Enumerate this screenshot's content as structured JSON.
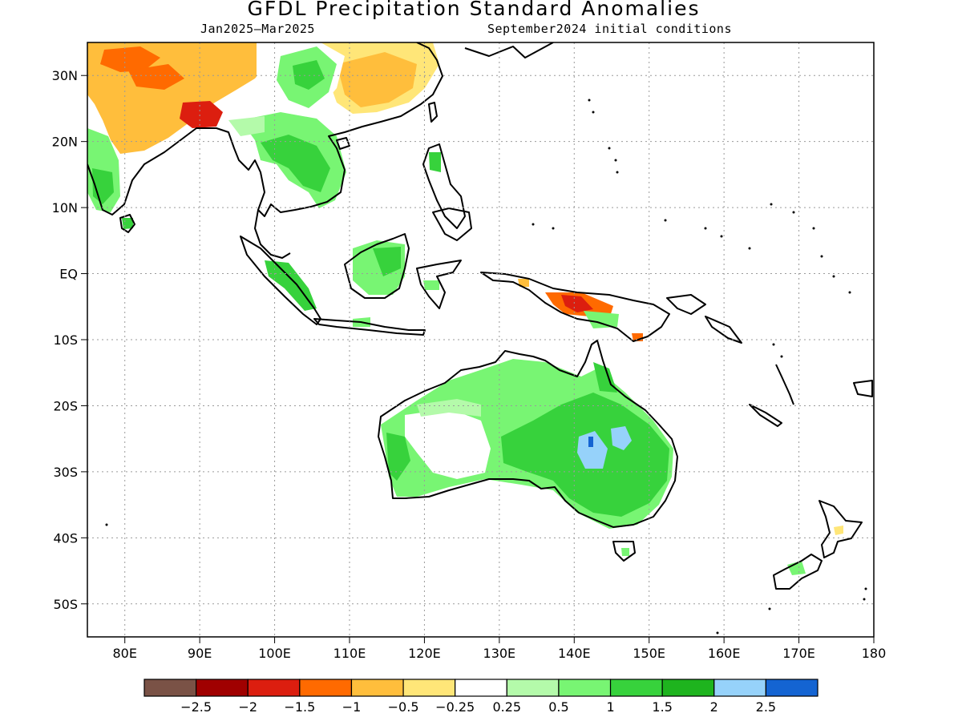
{
  "title": "GFDL Precipitation Standard Anomalies",
  "subtitle_left": "Jan2025–Mar2025",
  "subtitle_right": "September2024 initial conditions",
  "lat_labels": [
    "30N",
    "20N",
    "10N",
    "EQ",
    "10S",
    "20S",
    "30S",
    "40S",
    "50S"
  ],
  "lat_values": [
    30,
    20,
    10,
    0,
    -10,
    -20,
    -30,
    -40,
    -50
  ],
  "lon_labels": [
    "80E",
    "90E",
    "100E",
    "110E",
    "120E",
    "130E",
    "140E",
    "150E",
    "160E",
    "170E",
    "180"
  ],
  "lon_values": [
    80,
    90,
    100,
    110,
    120,
    130,
    140,
    150,
    160,
    170,
    180
  ],
  "map_extent": {
    "lon_min": 75,
    "lon_max": 180,
    "lat_min": -55,
    "lat_max": 35
  },
  "colorbar": {
    "colors": [
      "#7a5246",
      "#a00000",
      "#dc1e0f",
      "#ff6a00",
      "#ffbe3c",
      "#ffe678",
      "#ffffff",
      "#b4faaa",
      "#78f573",
      "#37d23c",
      "#1eb41e",
      "#96d2fa",
      "#1464d2"
    ],
    "ticks": [
      "−2.5",
      "−2",
      "−1.5",
      "−1",
      "−0.5",
      "−0.25",
      "0.25",
      "0.5",
      "1",
      "1.5",
      "2",
      "2.5"
    ]
  }
}
